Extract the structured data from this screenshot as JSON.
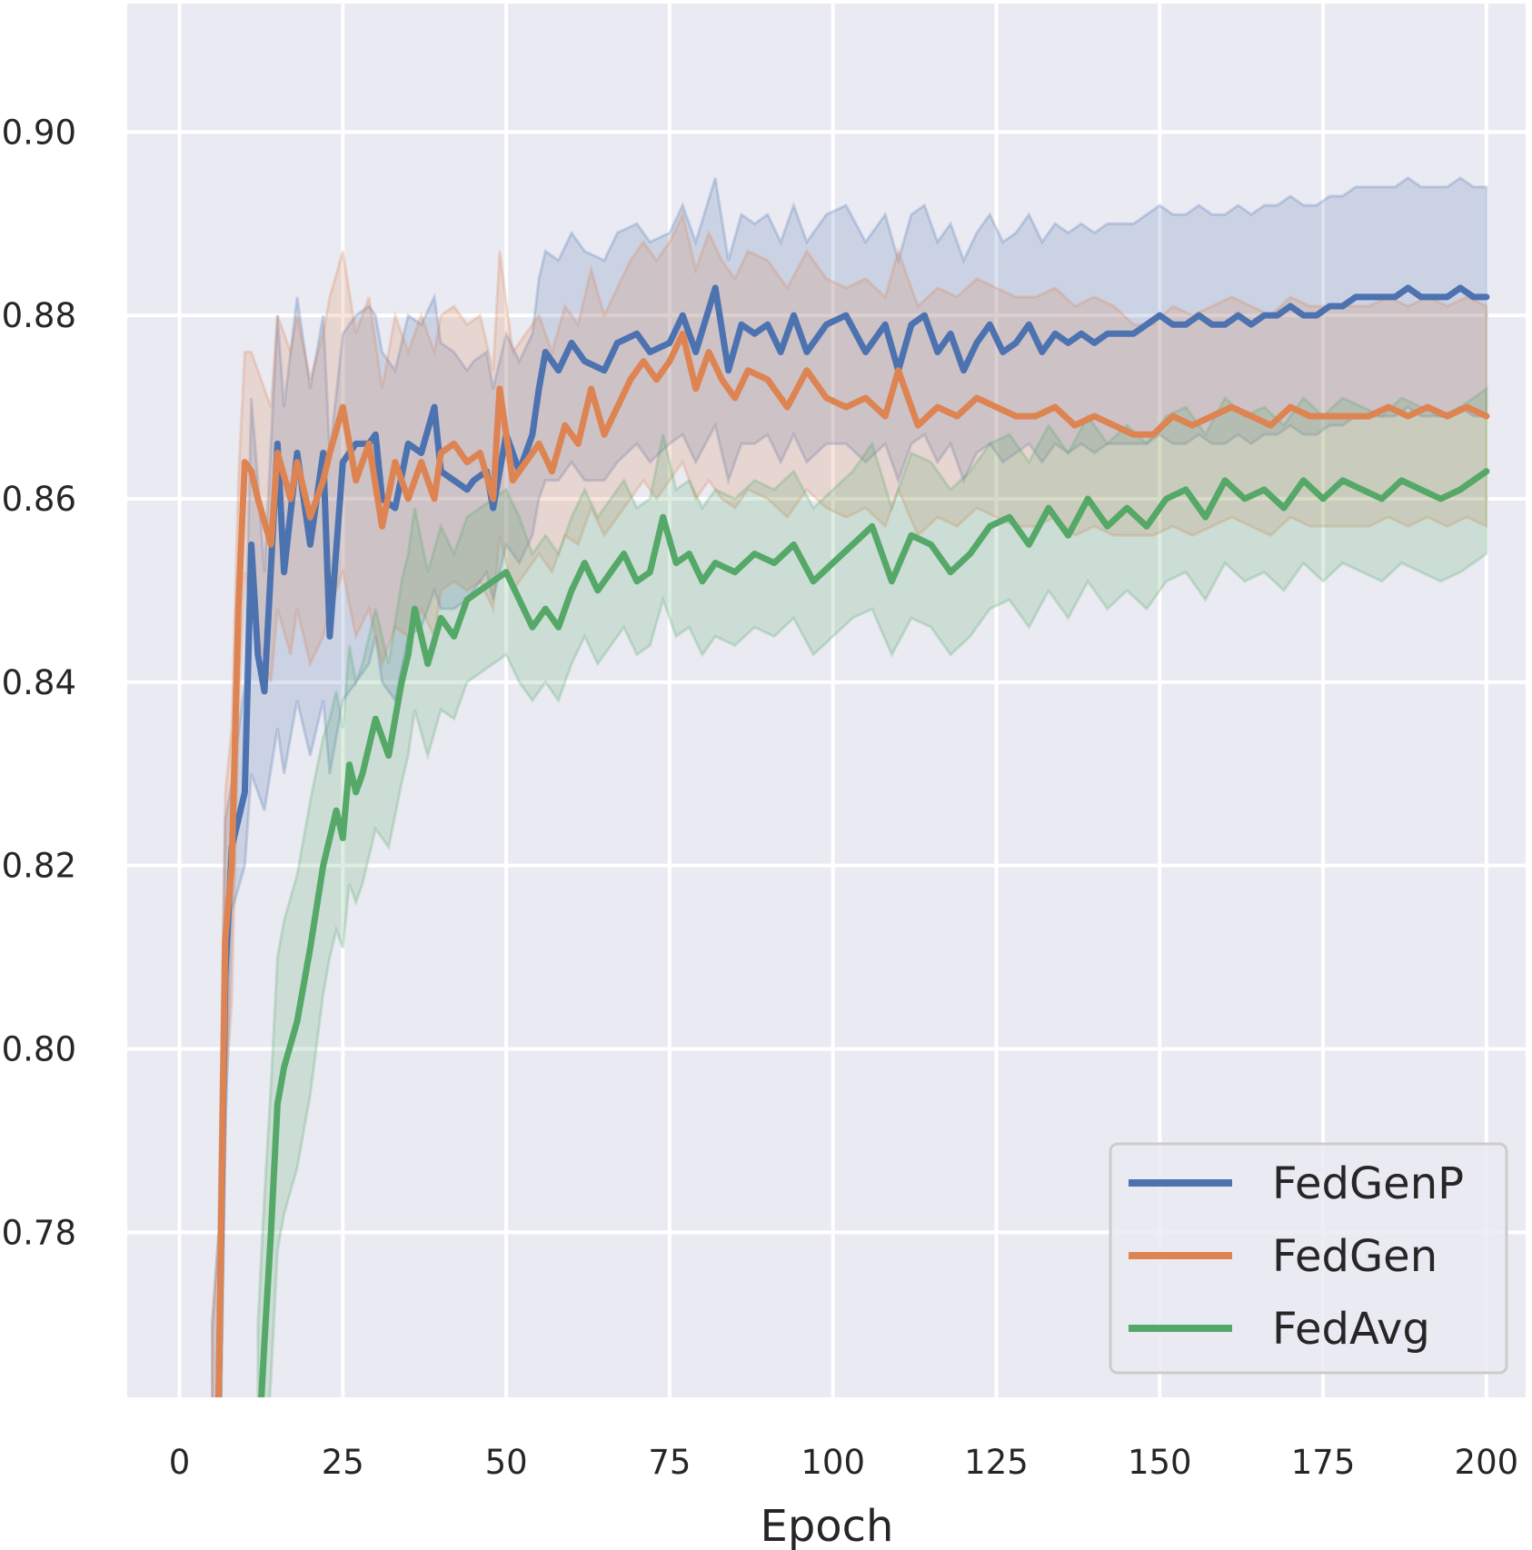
{
  "chart_data": {
    "type": "line",
    "title": "",
    "xlabel": "Epoch",
    "ylabel": "",
    "xlim": [
      -8,
      206
    ],
    "ylim": [
      0.762,
      0.914
    ],
    "xticks": [
      0,
      25,
      50,
      75,
      100,
      125,
      150,
      175,
      200
    ],
    "yticks": [
      0.78,
      0.8,
      0.82,
      0.84,
      0.86,
      0.88,
      0.9
    ],
    "ytick_labels": [
      "0.78",
      "0.80",
      "0.82",
      "0.84",
      "0.86",
      "0.88",
      "0.90"
    ],
    "grid": true,
    "background": "#eaeaf2",
    "legend_position": "lower-right",
    "series": [
      {
        "name": "FedGenP",
        "color": "#4c72b0",
        "band_opacity": 0.2,
        "x": [
          5,
          6,
          7,
          8,
          10,
          11,
          12,
          13,
          15,
          16,
          18,
          20,
          22,
          23,
          25,
          27,
          29,
          30,
          31,
          33,
          35,
          37,
          39,
          40,
          42,
          44,
          45,
          47,
          48,
          50,
          52,
          54,
          55,
          56,
          58,
          60,
          62,
          65,
          67,
          70,
          72,
          75,
          77,
          79,
          82,
          84,
          86,
          88,
          90,
          92,
          94,
          96,
          99,
          102,
          105,
          108,
          110,
          112,
          114,
          116,
          118,
          120,
          122,
          124,
          126,
          128,
          130,
          132,
          134,
          136,
          138,
          140,
          142,
          144,
          146,
          148,
          150,
          152,
          154,
          156,
          158,
          160,
          162,
          164,
          166,
          168,
          170,
          172,
          174,
          176,
          178,
          180,
          182,
          184,
          186,
          188,
          190,
          192,
          194,
          196,
          198,
          200
        ],
        "y": [
          0.755,
          0.762,
          0.808,
          0.822,
          0.828,
          0.855,
          0.843,
          0.839,
          0.866,
          0.852,
          0.865,
          0.855,
          0.865,
          0.845,
          0.864,
          0.866,
          0.866,
          0.867,
          0.86,
          0.859,
          0.866,
          0.865,
          0.87,
          0.863,
          0.862,
          0.861,
          0.862,
          0.863,
          0.859,
          0.867,
          0.863,
          0.867,
          0.872,
          0.876,
          0.874,
          0.877,
          0.875,
          0.874,
          0.877,
          0.878,
          0.876,
          0.877,
          0.88,
          0.876,
          0.883,
          0.874,
          0.879,
          0.878,
          0.879,
          0.876,
          0.88,
          0.876,
          0.879,
          0.88,
          0.876,
          0.879,
          0.874,
          0.879,
          0.88,
          0.876,
          0.878,
          0.874,
          0.877,
          0.879,
          0.876,
          0.877,
          0.879,
          0.876,
          0.878,
          0.877,
          0.878,
          0.877,
          0.878,
          0.878,
          0.878,
          0.879,
          0.88,
          0.879,
          0.879,
          0.88,
          0.879,
          0.879,
          0.88,
          0.879,
          0.88,
          0.88,
          0.881,
          0.88,
          0.88,
          0.881,
          0.881,
          0.882,
          0.882,
          0.882,
          0.882,
          0.883,
          0.882,
          0.882,
          0.882,
          0.883,
          0.882,
          0.882
        ],
        "lower": [
          0.74,
          0.745,
          0.79,
          0.815,
          0.82,
          0.83,
          0.828,
          0.826,
          0.835,
          0.83,
          0.838,
          0.832,
          0.838,
          0.83,
          0.838,
          0.84,
          0.842,
          0.845,
          0.84,
          0.838,
          0.845,
          0.846,
          0.85,
          0.848,
          0.848,
          0.849,
          0.85,
          0.852,
          0.849,
          0.855,
          0.853,
          0.856,
          0.86,
          0.862,
          0.862,
          0.864,
          0.862,
          0.862,
          0.864,
          0.866,
          0.864,
          0.866,
          0.867,
          0.864,
          0.868,
          0.862,
          0.866,
          0.866,
          0.867,
          0.864,
          0.867,
          0.864,
          0.866,
          0.866,
          0.864,
          0.866,
          0.862,
          0.866,
          0.867,
          0.864,
          0.866,
          0.862,
          0.865,
          0.866,
          0.864,
          0.865,
          0.866,
          0.864,
          0.866,
          0.865,
          0.866,
          0.865,
          0.866,
          0.866,
          0.866,
          0.866,
          0.867,
          0.866,
          0.866,
          0.867,
          0.866,
          0.866,
          0.867,
          0.866,
          0.867,
          0.867,
          0.868,
          0.867,
          0.867,
          0.868,
          0.868,
          0.869,
          0.869,
          0.869,
          0.869,
          0.87,
          0.869,
          0.869,
          0.869,
          0.87,
          0.869,
          0.869
        ],
        "upper": [
          0.77,
          0.78,
          0.825,
          0.829,
          0.84,
          0.871,
          0.862,
          0.852,
          0.88,
          0.87,
          0.882,
          0.872,
          0.88,
          0.865,
          0.878,
          0.88,
          0.881,
          0.88,
          0.876,
          0.874,
          0.88,
          0.879,
          0.882,
          0.877,
          0.876,
          0.874,
          0.875,
          0.876,
          0.872,
          0.878,
          0.875,
          0.878,
          0.884,
          0.887,
          0.886,
          0.889,
          0.887,
          0.886,
          0.889,
          0.89,
          0.888,
          0.889,
          0.892,
          0.888,
          0.895,
          0.886,
          0.891,
          0.89,
          0.891,
          0.888,
          0.892,
          0.888,
          0.891,
          0.892,
          0.888,
          0.891,
          0.886,
          0.891,
          0.892,
          0.888,
          0.89,
          0.886,
          0.889,
          0.891,
          0.888,
          0.889,
          0.891,
          0.888,
          0.89,
          0.889,
          0.89,
          0.889,
          0.89,
          0.89,
          0.89,
          0.891,
          0.892,
          0.891,
          0.891,
          0.892,
          0.891,
          0.891,
          0.892,
          0.891,
          0.892,
          0.892,
          0.893,
          0.892,
          0.892,
          0.893,
          0.893,
          0.894,
          0.894,
          0.894,
          0.894,
          0.895,
          0.894,
          0.894,
          0.894,
          0.895,
          0.894,
          0.894
        ]
      },
      {
        "name": "FedGen",
        "color": "#dd8452",
        "band_opacity": 0.2,
        "x": [
          5,
          6,
          7,
          8,
          9,
          10,
          11,
          12,
          14,
          15,
          17,
          18,
          20,
          22,
          23,
          25,
          27,
          29,
          31,
          33,
          35,
          37,
          39,
          40,
          42,
          44,
          46,
          48,
          49,
          51,
          53,
          55,
          57,
          59,
          61,
          63,
          65,
          67,
          69,
          71,
          73,
          75,
          77,
          79,
          81,
          83,
          85,
          87,
          90,
          93,
          96,
          99,
          102,
          105,
          108,
          110,
          113,
          116,
          119,
          122,
          125,
          128,
          131,
          134,
          137,
          140,
          143,
          146,
          149,
          152,
          155,
          158,
          161,
          164,
          167,
          170,
          173,
          176,
          179,
          182,
          185,
          188,
          191,
          194,
          197,
          200
        ],
        "y": [
          0.755,
          0.762,
          0.812,
          0.82,
          0.848,
          0.864,
          0.863,
          0.86,
          0.855,
          0.865,
          0.86,
          0.864,
          0.858,
          0.862,
          0.865,
          0.87,
          0.862,
          0.866,
          0.857,
          0.864,
          0.86,
          0.864,
          0.86,
          0.865,
          0.866,
          0.864,
          0.865,
          0.86,
          0.872,
          0.862,
          0.864,
          0.866,
          0.863,
          0.868,
          0.866,
          0.872,
          0.867,
          0.87,
          0.873,
          0.875,
          0.873,
          0.875,
          0.878,
          0.872,
          0.876,
          0.873,
          0.871,
          0.874,
          0.873,
          0.87,
          0.874,
          0.871,
          0.87,
          0.871,
          0.869,
          0.874,
          0.868,
          0.87,
          0.869,
          0.871,
          0.87,
          0.869,
          0.869,
          0.87,
          0.868,
          0.869,
          0.868,
          0.867,
          0.867,
          0.869,
          0.868,
          0.869,
          0.87,
          0.869,
          0.868,
          0.87,
          0.869,
          0.869,
          0.869,
          0.869,
          0.87,
          0.869,
          0.87,
          0.869,
          0.87,
          0.869
        ],
        "lower": [
          0.74,
          0.745,
          0.795,
          0.805,
          0.835,
          0.852,
          0.848,
          0.845,
          0.84,
          0.848,
          0.843,
          0.848,
          0.842,
          0.845,
          0.848,
          0.852,
          0.845,
          0.848,
          0.842,
          0.846,
          0.845,
          0.848,
          0.845,
          0.85,
          0.851,
          0.85,
          0.851,
          0.848,
          0.856,
          0.85,
          0.852,
          0.854,
          0.852,
          0.856,
          0.855,
          0.859,
          0.856,
          0.858,
          0.86,
          0.862,
          0.86,
          0.862,
          0.864,
          0.86,
          0.862,
          0.86,
          0.859,
          0.861,
          0.86,
          0.858,
          0.861,
          0.859,
          0.858,
          0.859,
          0.857,
          0.861,
          0.856,
          0.858,
          0.857,
          0.859,
          0.858,
          0.857,
          0.857,
          0.858,
          0.856,
          0.857,
          0.856,
          0.856,
          0.856,
          0.857,
          0.856,
          0.857,
          0.858,
          0.857,
          0.856,
          0.858,
          0.857,
          0.857,
          0.857,
          0.857,
          0.858,
          0.857,
          0.858,
          0.857,
          0.858,
          0.857
        ],
        "upper": [
          0.77,
          0.78,
          0.828,
          0.835,
          0.862,
          0.876,
          0.876,
          0.874,
          0.87,
          0.88,
          0.876,
          0.88,
          0.873,
          0.878,
          0.882,
          0.887,
          0.878,
          0.882,
          0.872,
          0.88,
          0.876,
          0.88,
          0.876,
          0.88,
          0.881,
          0.879,
          0.88,
          0.874,
          0.887,
          0.876,
          0.878,
          0.88,
          0.876,
          0.881,
          0.879,
          0.885,
          0.88,
          0.883,
          0.886,
          0.888,
          0.886,
          0.888,
          0.891,
          0.885,
          0.889,
          0.886,
          0.884,
          0.887,
          0.886,
          0.883,
          0.887,
          0.884,
          0.883,
          0.884,
          0.882,
          0.887,
          0.881,
          0.883,
          0.882,
          0.884,
          0.883,
          0.882,
          0.882,
          0.883,
          0.881,
          0.882,
          0.881,
          0.879,
          0.879,
          0.881,
          0.88,
          0.881,
          0.882,
          0.881,
          0.88,
          0.882,
          0.881,
          0.881,
          0.881,
          0.881,
          0.882,
          0.881,
          0.882,
          0.881,
          0.882,
          0.881
        ]
      },
      {
        "name": "FedAvg",
        "color": "#55a868",
        "band_opacity": 0.2,
        "x": [
          12,
          13,
          14,
          15,
          16,
          18,
          20,
          22,
          23,
          24,
          25,
          26,
          27,
          28,
          30,
          32,
          34,
          35,
          36,
          38,
          40,
          42,
          44,
          46,
          48,
          50,
          52,
          54,
          56,
          58,
          60,
          62,
          64,
          66,
          68,
          70,
          72,
          74,
          76,
          78,
          80,
          82,
          85,
          88,
          91,
          94,
          97,
          100,
          103,
          106,
          109,
          112,
          115,
          118,
          121,
          124,
          127,
          130,
          133,
          136,
          139,
          142,
          145,
          148,
          151,
          154,
          157,
          160,
          163,
          166,
          169,
          172,
          175,
          178,
          181,
          184,
          187,
          190,
          193,
          196,
          198,
          200
        ],
        "y": [
          0.755,
          0.768,
          0.78,
          0.794,
          0.798,
          0.803,
          0.811,
          0.82,
          0.823,
          0.826,
          0.823,
          0.831,
          0.828,
          0.83,
          0.836,
          0.832,
          0.84,
          0.843,
          0.848,
          0.842,
          0.847,
          0.845,
          0.849,
          0.85,
          0.851,
          0.852,
          0.849,
          0.846,
          0.848,
          0.846,
          0.85,
          0.853,
          0.85,
          0.852,
          0.854,
          0.851,
          0.852,
          0.858,
          0.853,
          0.854,
          0.851,
          0.853,
          0.852,
          0.854,
          0.853,
          0.855,
          0.851,
          0.853,
          0.855,
          0.857,
          0.851,
          0.856,
          0.855,
          0.852,
          0.854,
          0.857,
          0.858,
          0.855,
          0.859,
          0.856,
          0.86,
          0.857,
          0.859,
          0.857,
          0.86,
          0.861,
          0.858,
          0.862,
          0.86,
          0.861,
          0.859,
          0.862,
          0.86,
          0.862,
          0.861,
          0.86,
          0.862,
          0.861,
          0.86,
          0.861,
          0.862,
          0.863
        ],
        "lower": [
          0.74,
          0.752,
          0.764,
          0.778,
          0.782,
          0.787,
          0.795,
          0.806,
          0.81,
          0.813,
          0.811,
          0.818,
          0.816,
          0.818,
          0.824,
          0.822,
          0.829,
          0.832,
          0.837,
          0.832,
          0.837,
          0.836,
          0.84,
          0.841,
          0.842,
          0.843,
          0.84,
          0.838,
          0.84,
          0.838,
          0.842,
          0.845,
          0.842,
          0.844,
          0.846,
          0.843,
          0.844,
          0.849,
          0.845,
          0.846,
          0.843,
          0.845,
          0.844,
          0.846,
          0.845,
          0.847,
          0.843,
          0.845,
          0.847,
          0.848,
          0.843,
          0.847,
          0.846,
          0.843,
          0.845,
          0.848,
          0.849,
          0.846,
          0.85,
          0.847,
          0.851,
          0.848,
          0.85,
          0.848,
          0.851,
          0.852,
          0.849,
          0.853,
          0.851,
          0.852,
          0.85,
          0.853,
          0.851,
          0.853,
          0.852,
          0.851,
          0.853,
          0.852,
          0.851,
          0.852,
          0.853,
          0.854
        ],
        "upper": [
          0.77,
          0.784,
          0.796,
          0.81,
          0.814,
          0.819,
          0.827,
          0.834,
          0.836,
          0.839,
          0.835,
          0.844,
          0.84,
          0.842,
          0.848,
          0.842,
          0.851,
          0.854,
          0.859,
          0.852,
          0.857,
          0.854,
          0.858,
          0.859,
          0.86,
          0.861,
          0.858,
          0.854,
          0.856,
          0.854,
          0.858,
          0.861,
          0.858,
          0.86,
          0.862,
          0.859,
          0.86,
          0.867,
          0.861,
          0.862,
          0.859,
          0.861,
          0.86,
          0.862,
          0.861,
          0.863,
          0.859,
          0.861,
          0.863,
          0.866,
          0.859,
          0.865,
          0.864,
          0.861,
          0.863,
          0.866,
          0.867,
          0.864,
          0.868,
          0.865,
          0.869,
          0.866,
          0.868,
          0.866,
          0.869,
          0.87,
          0.867,
          0.871,
          0.869,
          0.87,
          0.868,
          0.871,
          0.869,
          0.871,
          0.87,
          0.869,
          0.871,
          0.87,
          0.869,
          0.87,
          0.871,
          0.872
        ]
      }
    ]
  }
}
